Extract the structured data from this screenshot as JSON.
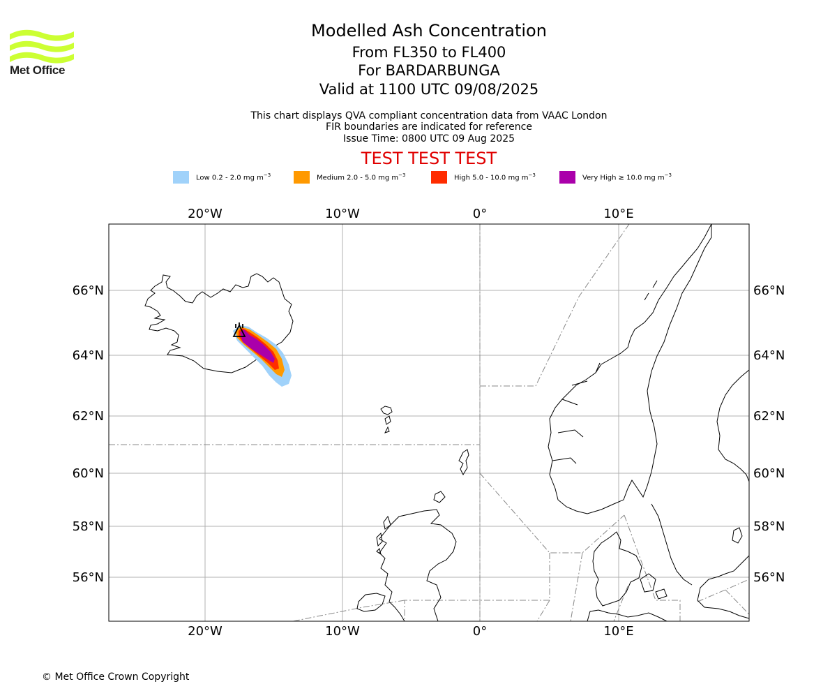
{
  "logo": {
    "text": "Met Office",
    "color": "#ccff33"
  },
  "titles": {
    "main": "Modelled Ash Concentration",
    "levels": "From FL350 to FL400",
    "volcano": "For BARDARBUNGA",
    "valid": "Valid at 1100 UTC 09/08/2025"
  },
  "subtitles": {
    "line1": "This chart displays QVA compliant concentration data from VAAC London",
    "line2": "FIR boundaries are indicated for reference",
    "line3": "Issue Time: 0800 UTC 09 Aug 2025"
  },
  "test_banner": "TEST TEST TEST",
  "legend": [
    {
      "label": "Low 0.2 - 2.0 mg m",
      "unit_exp": "−3",
      "color": "#a0d2fa"
    },
    {
      "label": "Medium 2.0 - 5.0 mg m",
      "unit_exp": "−3",
      "color": "#ff9900"
    },
    {
      "label": "High 5.0 - 10.0 mg m",
      "unit_exp": "−3",
      "color": "#ff2c00"
    },
    {
      "label": "Very High  ≥  10.0 mg m",
      "unit_exp": "−3",
      "color": "#aa00aa"
    }
  ],
  "axes": {
    "lon_labels": [
      "20°W",
      "10°W",
      "0°",
      "10°E"
    ],
    "lat_labels": [
      "66°N",
      "64°N",
      "62°N",
      "60°N",
      "58°N",
      "56°N"
    ]
  },
  "copyright": "© Met Office Crown Copyright"
}
